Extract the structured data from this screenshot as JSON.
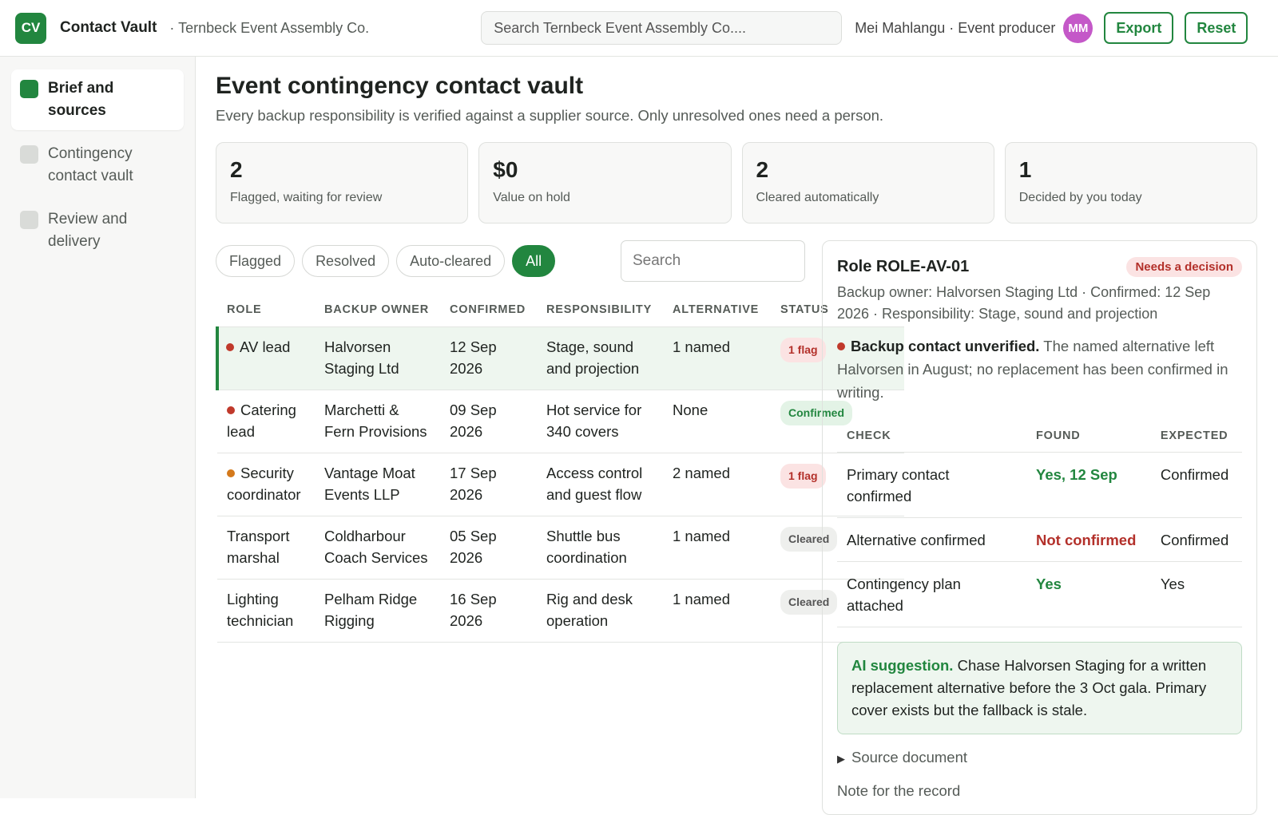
{
  "header": {
    "logo": "CV",
    "app_name": "Contact Vault",
    "org": "· Ternbeck Event Assembly Co.",
    "search_placeholder": "Search Ternbeck Event Assembly Co....",
    "user": "Mei Mahlangu · Event producer",
    "avatar": "MM",
    "buttons": [
      "Export",
      "Reset"
    ]
  },
  "sidebar": {
    "items": [
      "Brief and sources",
      "Contingency contact vault",
      "Review and delivery"
    ]
  },
  "page": {
    "title": "Event contingency contact vault",
    "subtitle": "Every backup responsibility is verified against a supplier source. Only unresolved ones need a person."
  },
  "stats": [
    {
      "value": "2",
      "label": "Flagged, waiting for review"
    },
    {
      "value": "$0",
      "label": "Value on hold"
    },
    {
      "value": "2",
      "label": "Cleared automatically"
    },
    {
      "value": "1",
      "label": "Decided by you today"
    }
  ],
  "filters": {
    "chips": [
      "Flagged",
      "Resolved",
      "Auto-cleared",
      "All"
    ],
    "search_placeholder": "Search"
  },
  "table": {
    "columns": [
      "ROLE",
      "BACKUP OWNER",
      "CONFIRMED",
      "RESPONSIBILITY",
      "ALTERNATIVE",
      "STATUS"
    ],
    "rows": [
      [
        "AV lead",
        "Halvorsen Staging Ltd",
        "12 Sep 2026",
        "Stage, sound and projection",
        "1 named",
        "1 flag"
      ],
      [
        "Catering lead",
        "Marchetti & Fern Provisions",
        "09 Sep 2026",
        "Hot service for 340 covers",
        "None",
        "Confirmed"
      ],
      [
        "Security coordinator",
        "Vantage Moat Events LLP",
        "17 Sep 2026",
        "Access control and guest flow",
        "2 named",
        "1 flag"
      ],
      [
        "Transport marshal",
        "Coldharbour Coach Services",
        "05 Sep 2026",
        "Shuttle bus coordination",
        "1 named",
        "Cleared"
      ],
      [
        "Lighting technician",
        "Pelham Ridge Rigging",
        "16 Sep 2026",
        "Rig and desk operation",
        "1 named",
        "Cleared"
      ]
    ]
  },
  "detail": {
    "title": "Role ROLE-AV-01",
    "badge": "Needs a decision",
    "meta": "Backup owner: Halvorsen Staging Ltd · Confirmed: 12 Sep 2026 · Responsibility: Stage, sound and projection",
    "alert_title": "Backup contact unverified.",
    "alert_text": "The named alternative left Halvorsen in August; no replacement has been confirmed in writing.",
    "checks": {
      "columns": [
        "CHECK",
        "FOUND",
        "EXPECTED"
      ],
      "rows": [
        [
          "Primary contact confirmed",
          "Yes, 12 Sep",
          "Confirmed"
        ],
        [
          "Alternative confirmed",
          "Not confirmed",
          "Confirmed"
        ],
        [
          "Contingency plan attached",
          "Yes",
          "Yes"
        ]
      ]
    },
    "ai_label": "AI suggestion.",
    "ai_text": "Chase Halvorsen Staging for a written replacement alternative before the 3 Oct gala. Primary cover exists but the fallback is stale.",
    "source": "Source document",
    "note": "Note for the record"
  }
}
